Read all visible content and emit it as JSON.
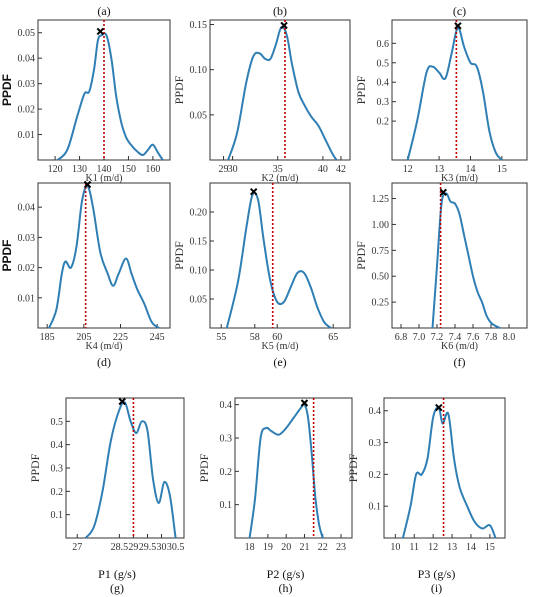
{
  "colors": {
    "curve": "#2f7fb5",
    "reference_line": "#c00000",
    "peak_marker": "#000000",
    "frame": "#333333"
  },
  "chart_data": [
    {
      "panel": "(a)",
      "label_position": "top",
      "type": "line",
      "xlabel": "K1 (m/d)",
      "ylabel": "PPDF",
      "ylabel_style": "bold",
      "xlim": [
        113,
        167
      ],
      "ylim": [
        0,
        0.055
      ],
      "xticks": [
        "120",
        "130",
        "140",
        "150",
        "160"
      ],
      "xtick_values": [
        120,
        130,
        140,
        150,
        160
      ],
      "yticks": [
        "0.01",
        "0.02",
        "0.03",
        "0.04",
        "0.05"
      ],
      "ytick_values": [
        0.01,
        0.02,
        0.03,
        0.04,
        0.05
      ],
      "x": [
        121,
        125,
        129,
        132,
        134,
        136,
        137.5,
        139,
        141,
        143,
        145,
        147,
        149,
        151,
        154,
        156,
        158,
        160,
        162,
        164
      ],
      "y": [
        0.0,
        0.004,
        0.017,
        0.026,
        0.027,
        0.036,
        0.047,
        0.049,
        0.049,
        0.04,
        0.025,
        0.015,
        0.009,
        0.006,
        0.003,
        0.002,
        0.004,
        0.006,
        0.003,
        0.0
      ],
      "peak": [
        138.5,
        0.0505
      ],
      "reference_x": 140
    },
    {
      "panel": "(b)",
      "label_position": "top",
      "type": "line",
      "xlabel": "K2 (m/d)",
      "ylabel": "PPDF",
      "ylabel_style": "serif",
      "xlim": [
        27.5,
        43
      ],
      "ylim": [
        0,
        0.155
      ],
      "xticks": [
        "29",
        "30",
        "35",
        "40",
        "42"
      ],
      "xtick_values": [
        29,
        30,
        35,
        40,
        42
      ],
      "yticks": [
        "0.05",
        "0.10",
        "0.15"
      ],
      "ytick_values": [
        0.05,
        0.1,
        0.15
      ],
      "x": [
        29.5,
        30.5,
        31.5,
        32.3,
        33,
        33.6,
        34.2,
        34.8,
        35.4,
        36,
        36.6,
        37.3,
        38,
        38.7,
        39.5,
        40.3,
        41,
        41.5
      ],
      "y": [
        0.0,
        0.03,
        0.085,
        0.115,
        0.118,
        0.112,
        0.112,
        0.128,
        0.147,
        0.138,
        0.105,
        0.075,
        0.06,
        0.048,
        0.038,
        0.022,
        0.008,
        0.0
      ],
      "peak": [
        35.7,
        0.149
      ],
      "reference_x": 35.8
    },
    {
      "panel": "(c)",
      "label_position": "top",
      "type": "line",
      "xlabel": "K3 (m/d)",
      "ylabel": "PPDF",
      "ylabel_style": "serif",
      "xlim": [
        11.5,
        15.8
      ],
      "ylim": [
        0,
        0.72
      ],
      "xticks": [
        "12",
        "13",
        "14",
        "15"
      ],
      "xtick_values": [
        12,
        13,
        14,
        15
      ],
      "yticks": [
        "0.2",
        "0.3",
        "0.4",
        "0.5",
        "0.6"
      ],
      "ytick_values": [
        0.2,
        0.3,
        0.4,
        0.5,
        0.6
      ],
      "x": [
        12.0,
        12.3,
        12.6,
        12.8,
        13.0,
        13.2,
        13.4,
        13.6,
        13.8,
        14.0,
        14.2,
        14.4,
        14.6,
        14.8,
        15.0
      ],
      "y": [
        0.0,
        0.2,
        0.45,
        0.48,
        0.45,
        0.42,
        0.55,
        0.68,
        0.58,
        0.5,
        0.48,
        0.35,
        0.15,
        0.04,
        0.0
      ],
      "peak": [
        13.6,
        0.69
      ],
      "reference_x": 13.55
    },
    {
      "panel": "(d)",
      "label_position": "bottom",
      "type": "line",
      "xlabel": "K4 (m/d)",
      "ylabel": "PPDF",
      "ylabel_style": "bold",
      "xlim": [
        180,
        252
      ],
      "ylim": [
        0,
        0.048
      ],
      "xticks": [
        "185",
        "205",
        "225",
        "245"
      ],
      "xtick_values": [
        185,
        205,
        225,
        245
      ],
      "yticks": [
        "0.01",
        "0.02",
        "0.03",
        "0.04"
      ],
      "ytick_values": [
        0.01,
        0.02,
        0.03,
        0.04
      ],
      "x": [
        186,
        190,
        193,
        195,
        198,
        201,
        204,
        207,
        210,
        214,
        218,
        221,
        224,
        228,
        231,
        234,
        238,
        242,
        246
      ],
      "y": [
        0.0,
        0.006,
        0.018,
        0.022,
        0.02,
        0.027,
        0.042,
        0.047,
        0.04,
        0.025,
        0.018,
        0.014,
        0.018,
        0.023,
        0.018,
        0.013,
        0.008,
        0.002,
        0.0
      ],
      "peak": [
        207,
        0.0475
      ],
      "reference_x": 206
    },
    {
      "panel": "(e)",
      "label_position": "bottom",
      "type": "line",
      "xlabel": "K5 (m/d)",
      "ylabel": "PPDF",
      "ylabel_style": "serif",
      "xlim": [
        54,
        66.5
      ],
      "ylim": [
        0,
        0.25
      ],
      "xticks": [
        "55",
        "58",
        "60",
        "65"
      ],
      "xtick_values": [
        55,
        58,
        60,
        65
      ],
      "yticks": [
        "0.05",
        "0.10",
        "0.15",
        "0.20"
      ],
      "ytick_values": [
        0.05,
        0.1,
        0.15,
        0.2
      ],
      "x": [
        55.5,
        56.5,
        57.3,
        57.8,
        58.3,
        58.8,
        59.4,
        60,
        60.6,
        61.2,
        61.8,
        62.4,
        63,
        63.6,
        64.2,
        64.8
      ],
      "y": [
        0.0,
        0.08,
        0.18,
        0.23,
        0.22,
        0.15,
        0.08,
        0.045,
        0.045,
        0.07,
        0.095,
        0.095,
        0.07,
        0.035,
        0.01,
        0.0
      ],
      "peak": [
        57.9,
        0.235
      ],
      "reference_x": 59.6
    },
    {
      "panel": "(f)",
      "label_position": "bottom",
      "type": "line",
      "xlabel": "K6 (m/d)",
      "ylabel": "PPDF",
      "ylabel_style": "serif",
      "xlim": [
        6.7,
        8.2
      ],
      "ylim": [
        0,
        1.4
      ],
      "xticks": [
        "6.8",
        "7.0",
        "7.2",
        "7.4",
        "7.6",
        "7.8",
        "8.0"
      ],
      "xtick_values": [
        6.8,
        7.0,
        7.2,
        7.4,
        7.6,
        7.8,
        8.0
      ],
      "yticks": [
        "0.25",
        "0.50",
        "0.75",
        "1.00",
        "1.25"
      ],
      "ytick_values": [
        0.25,
        0.5,
        0.75,
        1.0,
        1.25
      ],
      "x": [
        7.15,
        7.2,
        7.25,
        7.3,
        7.35,
        7.4,
        7.45,
        7.5,
        7.55,
        7.6,
        7.65,
        7.7,
        7.75,
        7.8,
        7.85,
        7.9
      ],
      "y": [
        0.0,
        0.6,
        1.2,
        1.3,
        1.22,
        1.2,
        1.1,
        0.9,
        0.7,
        0.5,
        0.35,
        0.25,
        0.12,
        0.05,
        0.02,
        0.0
      ],
      "peak": [
        7.27,
        1.31
      ],
      "reference_x": 7.24
    },
    {
      "panel": "(g)",
      "label_position": "bottom",
      "type": "line",
      "xlabel": "P1 (g/s)",
      "ylabel": "PPDF",
      "ylabel_style": "serif",
      "xlim": [
        26.6,
        30.8
      ],
      "ylim": [
        0,
        0.6
      ],
      "xticks": [
        "27",
        "28.5",
        "29",
        "29.5",
        "30",
        "30.5"
      ],
      "xtick_values": [
        27,
        28.5,
        29,
        29.5,
        30,
        30.5
      ],
      "yticks": [
        "0.1",
        "0.2",
        "0.3",
        "0.4",
        "0.5"
      ],
      "ytick_values": [
        0.1,
        0.2,
        0.3,
        0.4,
        0.5
      ],
      "x": [
        27.3,
        27.6,
        27.9,
        28.2,
        28.5,
        28.7,
        28.9,
        29.1,
        29.3,
        29.5,
        29.7,
        29.9,
        30.1,
        30.3,
        30.5
      ],
      "y": [
        0.0,
        0.05,
        0.2,
        0.42,
        0.55,
        0.58,
        0.5,
        0.45,
        0.5,
        0.46,
        0.25,
        0.15,
        0.24,
        0.18,
        0.0
      ],
      "peak": [
        28.6,
        0.585
      ],
      "reference_x": 29.0
    },
    {
      "panel": "(h)",
      "label_position": "bottom",
      "type": "line",
      "xlabel": "P2 (g/s)",
      "ylabel": "PPDF",
      "ylabel_style": "serif",
      "xlim": [
        17.2,
        23.6
      ],
      "ylim": [
        0,
        0.42
      ],
      "xticks": [
        "18",
        "19",
        "20",
        "21",
        "22",
        "23"
      ],
      "xtick_values": [
        18,
        19,
        20,
        21,
        22,
        23
      ],
      "yticks": [
        "0.1",
        "0.2",
        "0.3",
        "0.4"
      ],
      "ytick_values": [
        0.1,
        0.2,
        0.3,
        0.4
      ],
      "x": [
        18.0,
        18.3,
        18.6,
        18.9,
        19.2,
        19.6,
        20.0,
        20.4,
        20.8,
        21.0,
        21.2,
        21.4,
        21.6,
        21.8,
        22.0
      ],
      "y": [
        0.0,
        0.12,
        0.3,
        0.33,
        0.32,
        0.31,
        0.33,
        0.36,
        0.39,
        0.4,
        0.36,
        0.25,
        0.12,
        0.04,
        0.0
      ],
      "peak": [
        21.0,
        0.405
      ],
      "reference_x": 21.5
    },
    {
      "panel": "(i)",
      "label_position": "bottom",
      "type": "line",
      "xlabel": "P3 (g/s)",
      "ylabel": "PPDF",
      "ylabel_style": "serif",
      "xlim": [
        9.4,
        15.8
      ],
      "ylim": [
        0,
        0.44
      ],
      "xticks": [
        "10",
        "11",
        "12",
        "13",
        "14",
        "15"
      ],
      "xtick_values": [
        10,
        11,
        12,
        13,
        14,
        15
      ],
      "yticks": [
        "0.1",
        "0.2",
        "0.3",
        "0.4"
      ],
      "ytick_values": [
        0.1,
        0.2,
        0.3,
        0.4
      ],
      "x": [
        10.4,
        10.8,
        11.1,
        11.4,
        11.7,
        12.0,
        12.3,
        12.5,
        12.8,
        13.1,
        13.4,
        13.8,
        14.2,
        14.6,
        15.0,
        15.3
      ],
      "y": [
        0.0,
        0.1,
        0.2,
        0.2,
        0.25,
        0.38,
        0.41,
        0.36,
        0.39,
        0.25,
        0.16,
        0.1,
        0.05,
        0.03,
        0.04,
        0.0
      ],
      "peak": [
        12.3,
        0.41
      ],
      "reference_x": 12.55
    }
  ]
}
